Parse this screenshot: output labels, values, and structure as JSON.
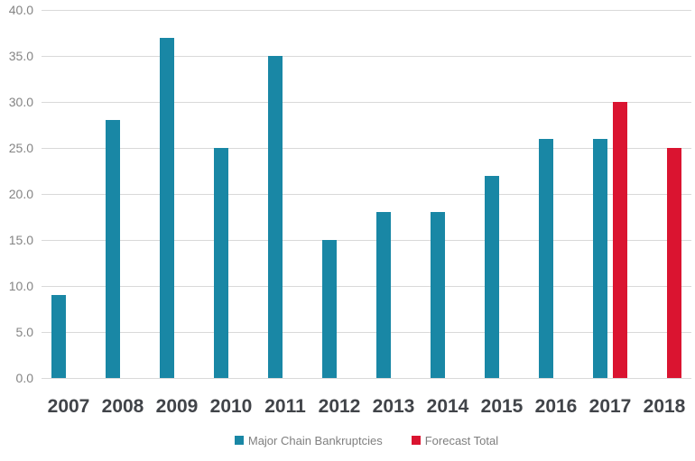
{
  "chart_data": {
    "type": "bar",
    "title": "",
    "categories": [
      "2007",
      "2008",
      "2009",
      "2010",
      "2011",
      "2012",
      "2013",
      "2014",
      "2015",
      "2016",
      "2017",
      "2018"
    ],
    "series": [
      {
        "name": "Major Chain Bankruptcies",
        "color": "#1987A5",
        "values": [
          9,
          28,
          37,
          25,
          35,
          15,
          18,
          18,
          22,
          26,
          26,
          null
        ]
      },
      {
        "name": "Forecast Total",
        "color": "#DA1430",
        "values": [
          null,
          null,
          null,
          null,
          null,
          null,
          null,
          null,
          null,
          null,
          30,
          25
        ]
      }
    ],
    "xlabel": "",
    "ylabel": "",
    "ylim": [
      0,
      40
    ],
    "ytick_step": 5,
    "ytick_decimals": 1,
    "grid": true,
    "legend_position": "bottom"
  },
  "legend": {
    "items": [
      {
        "label": "Major Chain Bankruptcies",
        "color": "#1987A5"
      },
      {
        "label": "Forecast Total",
        "color": "#DA1430"
      }
    ]
  },
  "colors": {
    "gridline": "#D9D9D9",
    "y_tick_label": "#848484",
    "x_tick_label": "#414449",
    "legend_text": "#7F7F7F",
    "background": "#FFFFFF"
  }
}
